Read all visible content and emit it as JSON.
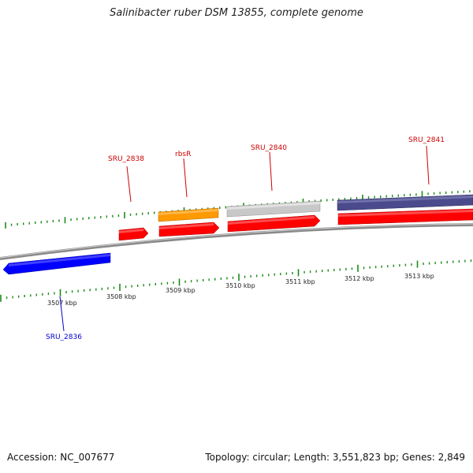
{
  "title": "Salinibacter ruber DSM 13855, complete genome",
  "footer": {
    "accession": "Accession: NC_007677",
    "stats": "Topology: circular; Length: 3,551,823 bp; Genes: 2,849"
  },
  "colors": {
    "backbone": "#8a8a8a",
    "tick": "#1a8a1a",
    "cds_forward": "#ff0000",
    "cds_reverse": "#0000ff",
    "label_forward": "#cc0000",
    "label_reverse": "#0000cc",
    "rbsR": "#ff9900",
    "SRU_2840": "#c8c8c8",
    "SRU_2841": "#4a4a8c"
  },
  "scale": {
    "unit": "kbp",
    "labels": [
      "3507 kbp",
      "3508 kbp",
      "3509 kbp",
      "3510 kbp",
      "3511 kbp",
      "3512 kbp",
      "3513 kbp"
    ]
  },
  "genes": [
    {
      "name": "SRU_2836",
      "strand": "reverse",
      "labeled": true
    },
    {
      "name": "SRU_2838",
      "strand": "forward",
      "labeled": true
    },
    {
      "name": "rbsR",
      "strand": "forward",
      "labeled": true
    },
    {
      "name": "SRU_2840",
      "strand": "forward",
      "labeled": true
    },
    {
      "name": "SRU_2841",
      "strand": "forward",
      "labeled": true
    }
  ]
}
